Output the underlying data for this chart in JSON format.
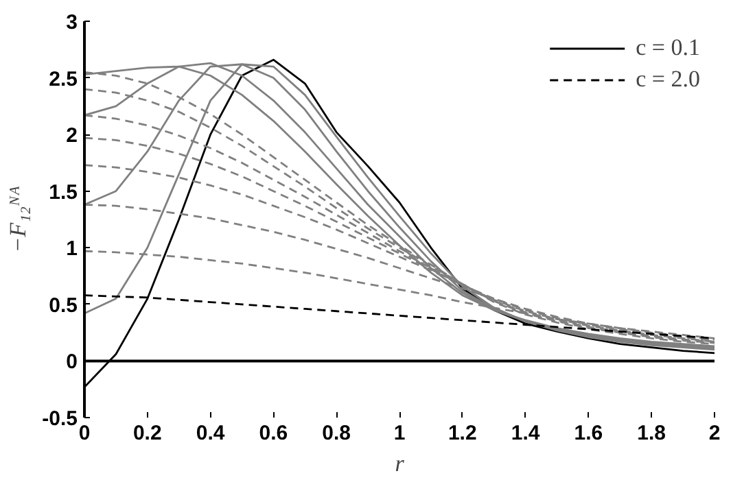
{
  "chart_data": {
    "type": "line",
    "xlabel": "r",
    "ylabel": "−F₁₂ᴺᴬ",
    "x": [
      0,
      0.1,
      0.2,
      0.3,
      0.4,
      0.5,
      0.6,
      0.7,
      0.8,
      0.9,
      1.0,
      1.1,
      1.2,
      1.3,
      1.4,
      1.5,
      1.6,
      1.7,
      1.8,
      1.9,
      2.0
    ],
    "series": [
      {
        "name": "c = 0.1",
        "color": "#000000",
        "line_style": "solid",
        "values": [
          -0.23,
          0.06,
          0.55,
          1.25,
          2.0,
          2.52,
          2.66,
          2.45,
          2.02,
          1.72,
          1.4,
          1.0,
          0.64,
          0.45,
          0.33,
          0.26,
          0.2,
          0.15,
          0.12,
          0.09,
          0.07
        ]
      },
      {
        "color": "#808080",
        "line_style": "solid",
        "values": [
          0.42,
          0.55,
          1.0,
          1.65,
          2.3,
          2.62,
          2.6,
          2.35,
          1.98,
          1.62,
          1.28,
          0.95,
          0.66,
          0.47,
          0.35,
          0.27,
          0.21,
          0.17,
          0.14,
          0.12,
          0.1
        ]
      },
      {
        "color": "#808080",
        "line_style": "solid",
        "values": [
          1.38,
          1.5,
          1.85,
          2.3,
          2.6,
          2.62,
          2.5,
          2.22,
          1.85,
          1.5,
          1.18,
          0.88,
          0.62,
          0.46,
          0.35,
          0.28,
          0.22,
          0.18,
          0.15,
          0.13,
          0.11
        ]
      },
      {
        "color": "#808080",
        "line_style": "solid",
        "values": [
          2.17,
          2.25,
          2.45,
          2.6,
          2.63,
          2.52,
          2.3,
          2.02,
          1.7,
          1.38,
          1.1,
          0.82,
          0.6,
          0.45,
          0.35,
          0.28,
          0.23,
          0.19,
          0.16,
          0.14,
          0.12
        ]
      },
      {
        "color": "#808080",
        "line_style": "solid",
        "values": [
          2.53,
          2.56,
          2.59,
          2.6,
          2.52,
          2.35,
          2.12,
          1.85,
          1.56,
          1.28,
          1.02,
          0.78,
          0.58,
          0.45,
          0.36,
          0.29,
          0.24,
          0.2,
          0.17,
          0.15,
          0.13
        ]
      },
      {
        "color": "#808080",
        "line_style": "dashed",
        "values": [
          2.55,
          2.52,
          2.45,
          2.33,
          2.18,
          2.0,
          1.8,
          1.6,
          1.4,
          1.2,
          1.02,
          0.85,
          0.68,
          0.52,
          0.41,
          0.34,
          0.28,
          0.24,
          0.2,
          0.17,
          0.15
        ]
      },
      {
        "color": "#808080",
        "line_style": "dashed",
        "values": [
          2.4,
          2.37,
          2.3,
          2.2,
          2.06,
          1.9,
          1.72,
          1.54,
          1.35,
          1.17,
          1.0,
          0.84,
          0.68,
          0.53,
          0.42,
          0.35,
          0.29,
          0.25,
          0.21,
          0.18,
          0.16
        ]
      },
      {
        "color": "#808080",
        "line_style": "dashed",
        "values": [
          2.17,
          2.14,
          2.08,
          1.99,
          1.88,
          1.75,
          1.6,
          1.45,
          1.29,
          1.13,
          0.97,
          0.82,
          0.67,
          0.53,
          0.43,
          0.36,
          0.3,
          0.26,
          0.22,
          0.19,
          0.17
        ]
      },
      {
        "color": "#808080",
        "line_style": "dashed",
        "values": [
          1.97,
          1.95,
          1.9,
          1.83,
          1.74,
          1.63,
          1.5,
          1.37,
          1.23,
          1.09,
          0.95,
          0.81,
          0.67,
          0.54,
          0.44,
          0.37,
          0.31,
          0.27,
          0.23,
          0.2,
          0.17
        ]
      },
      {
        "color": "#808080",
        "line_style": "dashed",
        "values": [
          1.73,
          1.71,
          1.67,
          1.62,
          1.55,
          1.47,
          1.37,
          1.27,
          1.16,
          1.04,
          0.92,
          0.8,
          0.67,
          0.55,
          0.45,
          0.38,
          0.32,
          0.28,
          0.24,
          0.21,
          0.18
        ]
      },
      {
        "color": "#808080",
        "line_style": "dashed",
        "values": [
          1.38,
          1.37,
          1.34,
          1.3,
          1.26,
          1.2,
          1.14,
          1.07,
          0.99,
          0.91,
          0.82,
          0.73,
          0.64,
          0.55,
          0.46,
          0.39,
          0.33,
          0.29,
          0.25,
          0.22,
          0.19
        ]
      },
      {
        "color": "#808080",
        "line_style": "dashed",
        "values": [
          0.97,
          0.96,
          0.94,
          0.92,
          0.89,
          0.86,
          0.82,
          0.78,
          0.73,
          0.68,
          0.63,
          0.58,
          0.52,
          0.47,
          0.42,
          0.37,
          0.33,
          0.29,
          0.26,
          0.23,
          0.2
        ]
      },
      {
        "name": "c = 2.0",
        "color": "#000000",
        "line_style": "dashed",
        "values": [
          0.58,
          0.57,
          0.56,
          0.54,
          0.52,
          0.5,
          0.48,
          0.46,
          0.44,
          0.42,
          0.4,
          0.38,
          0.36,
          0.34,
          0.32,
          0.3,
          0.28,
          0.26,
          0.24,
          0.22,
          0.2
        ]
      }
    ],
    "xlim": [
      0,
      2
    ],
    "ylim": [
      -0.5,
      3
    ],
    "xticks": [
      0,
      0.2,
      0.4,
      0.6,
      0.8,
      1,
      1.2,
      1.4,
      1.6,
      1.8,
      2
    ],
    "yticks": [
      -0.5,
      0,
      0.5,
      1,
      1.5,
      2,
      2.5,
      3
    ],
    "ref_lines": [
      {
        "axis": "y",
        "value": 0,
        "color": "#000000",
        "line_style": "solid"
      }
    ],
    "grid": false,
    "legend": "top right",
    "marker": "none"
  }
}
